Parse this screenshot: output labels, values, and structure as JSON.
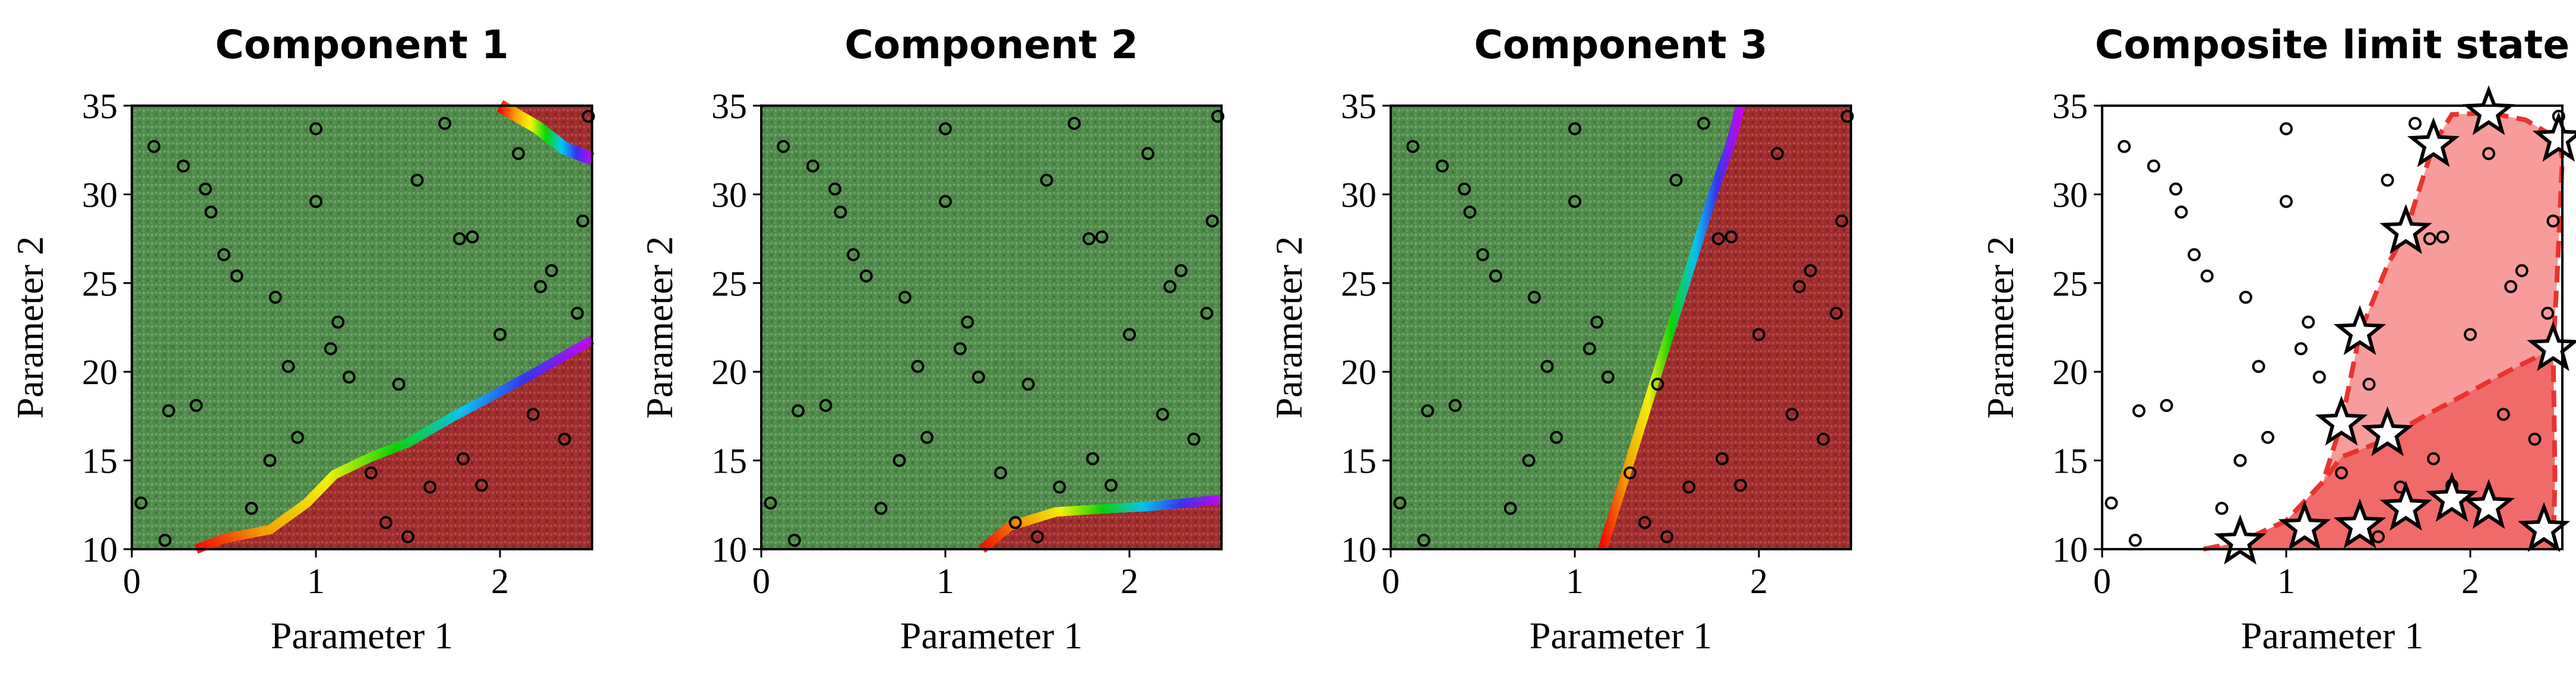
{
  "chart_data": [
    {
      "type": "scatter",
      "title": "Component 1",
      "xlabel": "Parameter 1",
      "ylabel": "Parameter 2",
      "xlim": [
        0,
        2.5
      ],
      "ylim": [
        10,
        35
      ],
      "xticks": [
        "0",
        "1",
        "2"
      ],
      "yticks": [
        "10",
        "15",
        "20",
        "25",
        "30",
        "35"
      ],
      "region_colors": {
        "safe": "#4f8a4a",
        "fail": "#9e2d2d"
      },
      "failure_boundary": [
        [
          0.35,
          10
        ],
        [
          0.5,
          10.6
        ],
        [
          0.75,
          11.1
        ],
        [
          0.95,
          12.6
        ],
        [
          1.1,
          14.2
        ],
        [
          1.3,
          15.2
        ],
        [
          1.5,
          16.0
        ],
        [
          1.75,
          17.5
        ],
        [
          1.95,
          18.6
        ],
        [
          2.2,
          20.0
        ],
        [
          2.5,
          21.8
        ]
      ],
      "secondary_boundary": [
        [
          2.0,
          35
        ],
        [
          2.2,
          33.8
        ],
        [
          2.35,
          32.6
        ],
        [
          2.5,
          32.0
        ]
      ]
    },
    {
      "type": "scatter",
      "title": "Component 2",
      "xlabel": "Parameter 1",
      "ylabel": "Parameter 2",
      "xlim": [
        0,
        2.5
      ],
      "ylim": [
        10,
        35
      ],
      "xticks": [
        "0",
        "1",
        "2"
      ],
      "yticks": [
        "10",
        "15",
        "20",
        "25",
        "30",
        "35"
      ],
      "region_colors": {
        "safe": "#4f8a4a",
        "fail": "#9e2d2d"
      },
      "failure_boundary": [
        [
          1.2,
          10
        ],
        [
          1.35,
          11.3
        ],
        [
          1.6,
          12.1
        ],
        [
          1.9,
          12.3
        ],
        [
          2.1,
          12.4
        ],
        [
          2.3,
          12.6
        ],
        [
          2.5,
          12.8
        ]
      ]
    },
    {
      "type": "scatter",
      "title": "Component 3",
      "xlabel": "Parameter 1",
      "ylabel": "Parameter 2",
      "xlim": [
        0,
        2.5
      ],
      "ylim": [
        10,
        35
      ],
      "xticks": [
        "0",
        "1",
        "2"
      ],
      "yticks": [
        "10",
        "15",
        "20",
        "25",
        "30",
        "35"
      ],
      "region_colors": {
        "safe": "#4f8a4a",
        "fail": "#9e2d2d"
      },
      "failure_boundary": [
        [
          1.15,
          10
        ],
        [
          1.3,
          15
        ],
        [
          1.45,
          20
        ],
        [
          1.6,
          25
        ],
        [
          1.75,
          30
        ],
        [
          1.85,
          33
        ],
        [
          1.9,
          35
        ]
      ]
    },
    {
      "type": "scatter",
      "title": "Composite limit state",
      "xlabel": "Parameter 1",
      "ylabel": "Parameter 2",
      "xlim": [
        0,
        2.5
      ],
      "ylim": [
        10,
        35
      ],
      "xticks": [
        "0",
        "1",
        "2"
      ],
      "yticks": [
        "10",
        "15",
        "20",
        "25",
        "30",
        "35"
      ],
      "region_colors": {
        "light": "#f79b9b",
        "dark": "#f06a6a",
        "boundary": "#e8332f"
      },
      "star_points": [
        [
          0.75,
          10.4
        ],
        [
          1.1,
          11.2
        ],
        [
          1.4,
          11.3
        ],
        [
          1.65,
          12.3
        ],
        [
          1.9,
          12.8
        ],
        [
          2.1,
          12.4
        ],
        [
          2.4,
          11.1
        ],
        [
          1.3,
          17.1
        ],
        [
          1.55,
          16.5
        ],
        [
          1.4,
          22.2
        ],
        [
          1.65,
          27.9
        ],
        [
          1.8,
          32.8
        ],
        [
          2.1,
          34.6
        ],
        [
          2.48,
          33.1
        ],
        [
          2.45,
          21.3
        ]
      ],
      "outer_boundary": [
        [
          0.55,
          10
        ],
        [
          0.75,
          10.4
        ],
        [
          1.0,
          11.6
        ],
        [
          1.2,
          13.8
        ],
        [
          1.3,
          17.1
        ],
        [
          1.4,
          22.2
        ],
        [
          1.55,
          26.0
        ],
        [
          1.65,
          27.9
        ],
        [
          1.8,
          32.8
        ],
        [
          1.9,
          34.5
        ],
        [
          2.1,
          34.6
        ],
        [
          2.3,
          34.2
        ],
        [
          2.48,
          33.1
        ],
        [
          2.5,
          32.0
        ],
        [
          2.47,
          25.0
        ],
        [
          2.45,
          21.3
        ],
        [
          2.46,
          14.0
        ],
        [
          2.45,
          10
        ]
      ],
      "inner_boundary": [
        [
          0.55,
          10
        ],
        [
          0.75,
          10.4
        ],
        [
          1.0,
          11.6
        ],
        [
          1.2,
          13.8
        ],
        [
          1.3,
          15.2
        ],
        [
          1.5,
          16.0
        ],
        [
          1.75,
          17.5
        ],
        [
          1.95,
          18.6
        ],
        [
          2.2,
          20.0
        ],
        [
          2.45,
          21.3
        ]
      ]
    }
  ],
  "sample_points": [
    [
      0.05,
      12.6
    ],
    [
      0.12,
      32.7
    ],
    [
      0.18,
      10.5
    ],
    [
      0.2,
      17.8
    ],
    [
      0.28,
      31.6
    ],
    [
      0.35,
      18.1
    ],
    [
      0.4,
      30.3
    ],
    [
      0.43,
      29.0
    ],
    [
      0.5,
      26.6
    ],
    [
      0.57,
      25.4
    ],
    [
      0.65,
      12.3
    ],
    [
      0.75,
      15.0
    ],
    [
      0.78,
      24.2
    ],
    [
      0.85,
      20.3
    ],
    [
      0.9,
      16.3
    ],
    [
      1.0,
      33.7
    ],
    [
      1.0,
      29.6
    ],
    [
      1.08,
      21.3
    ],
    [
      1.12,
      22.8
    ],
    [
      1.18,
      19.7
    ],
    [
      1.3,
      14.3
    ],
    [
      1.38,
      11.5
    ],
    [
      1.45,
      19.3
    ],
    [
      1.5,
      10.7
    ],
    [
      1.55,
      30.8
    ],
    [
      1.62,
      13.5
    ],
    [
      1.7,
      34.0
    ],
    [
      1.78,
      27.5
    ],
    [
      1.8,
      15.1
    ],
    [
      1.85,
      27.6
    ],
    [
      1.9,
      13.6
    ],
    [
      2.0,
      22.1
    ],
    [
      2.1,
      32.3
    ],
    [
      2.18,
      17.6
    ],
    [
      2.22,
      24.8
    ],
    [
      2.28,
      25.7
    ],
    [
      2.35,
      16.2
    ],
    [
      2.42,
      23.3
    ],
    [
      2.45,
      28.5
    ],
    [
      2.48,
      34.4
    ]
  ]
}
